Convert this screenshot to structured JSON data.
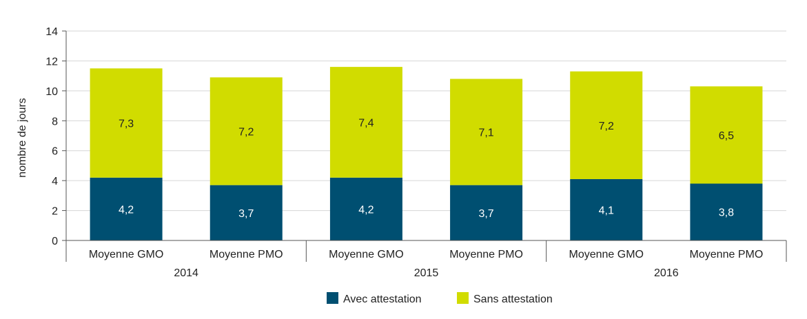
{
  "chart_data": {
    "type": "bar",
    "stacked": true,
    "ylabel": "nombre de jours",
    "ylim": [
      0,
      14
    ],
    "yticks": [
      0,
      2,
      4,
      6,
      8,
      10,
      12,
      14
    ],
    "grid": true,
    "legend_position": "bottom",
    "groups": [
      {
        "label": "2014",
        "categories": [
          "Moyenne GMO",
          "Moyenne PMO"
        ]
      },
      {
        "label": "2015",
        "categories": [
          "Moyenne GMO",
          "Moyenne PMO"
        ]
      },
      {
        "label": "2016",
        "categories": [
          "Moyenne GMO",
          "Moyenne PMO"
        ]
      }
    ],
    "categories": [
      "Moyenne GMO",
      "Moyenne PMO",
      "Moyenne GMO",
      "Moyenne PMO",
      "Moyenne GMO",
      "Moyenne PMO"
    ],
    "series": [
      {
        "name": "Avec attestation",
        "color": "#004f71",
        "label_color": "#ffffff",
        "values": [
          4.2,
          3.7,
          4.2,
          3.7,
          4.1,
          3.8
        ]
      },
      {
        "name": "Sans attestation",
        "color": "#d1dc00",
        "label_color": "#222222",
        "values": [
          7.3,
          7.2,
          7.4,
          7.1,
          7.2,
          6.5
        ]
      }
    ]
  }
}
